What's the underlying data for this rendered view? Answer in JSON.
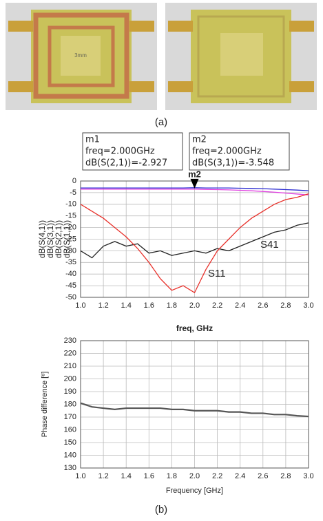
{
  "figure_labels": {
    "a": "(a)",
    "b": "(b)"
  },
  "chart_data": [
    {
      "type": "line",
      "xlabel": "freq, GHz",
      "x": [
        1.0,
        1.1,
        1.2,
        1.3,
        1.4,
        1.5,
        1.6,
        1.7,
        1.8,
        1.9,
        2.0,
        2.1,
        2.2,
        2.3,
        2.4,
        2.5,
        2.6,
        2.7,
        2.8,
        2.9,
        3.0
      ],
      "series": [
        {
          "name": "dB(S(4,1))",
          "color": "#222222",
          "values": [
            -30,
            -33,
            -28,
            -26,
            -28,
            -27,
            -31,
            -30,
            -32,
            -31,
            -30,
            -31,
            -29,
            -30,
            -28,
            -26,
            -24,
            -22,
            -21,
            -19,
            -18
          ]
        },
        {
          "name": "dB(S(3,1))",
          "color": "#e040e0",
          "values": [
            -3.5,
            -3.5,
            -3.5,
            -3.5,
            -3.5,
            -3.5,
            -3.5,
            -3.5,
            -3.5,
            -3.5,
            -3.5,
            -3.6,
            -3.7,
            -3.8,
            -4.0,
            -4.2,
            -4.5,
            -4.8,
            -5.2,
            -5.6,
            -6
          ]
        },
        {
          "name": "dB(S(2,1))",
          "color": "#2a2ad0",
          "values": [
            -3,
            -3,
            -3,
            -3,
            -3,
            -3,
            -3,
            -3,
            -3,
            -3,
            -2.9,
            -3,
            -3,
            -3,
            -3.1,
            -3.2,
            -3.3,
            -3.5,
            -3.7,
            -3.9,
            -4.2
          ]
        },
        {
          "name": "dB(S(1,1))",
          "color": "#e8302a",
          "values": [
            -10,
            -13,
            -16,
            -20,
            -24,
            -29,
            -35,
            -42,
            -47,
            -45,
            -48,
            -38,
            -30,
            -25,
            -20,
            -16,
            -13,
            -10,
            -8,
            -7,
            -5.5
          ]
        }
      ],
      "annotations": [
        "S41",
        "S11"
      ],
      "markers": [
        {
          "name": "m1",
          "freq": "freq=2.000GHz",
          "reading": "dB(S(2,1))=-2.927"
        },
        {
          "name": "m2",
          "freq": "freq=2.000GHz",
          "reading": "dB(S(3,1))=-3.548"
        }
      ],
      "xlim": [
        1.0,
        3.0
      ],
      "xticks": [
        {
          "value": 1.0,
          "label": "1.0"
        },
        {
          "value": 1.2,
          "label": "1.2"
        },
        {
          "value": 1.4,
          "label": "1.4"
        },
        {
          "value": 1.6,
          "label": "1.6"
        },
        {
          "value": 1.8,
          "label": "1.8"
        },
        {
          "value": 2.0,
          "label": "2.0"
        },
        {
          "value": 2.2,
          "label": "2.2"
        },
        {
          "value": 2.4,
          "label": "2.4"
        },
        {
          "value": 2.6,
          "label": "2.6"
        },
        {
          "value": 2.8,
          "label": "2.8"
        },
        {
          "value": 3.0,
          "label": "3.0"
        }
      ],
      "ylim": [
        -50,
        0
      ],
      "yticks": [
        0,
        -5,
        -10,
        -15,
        -20,
        -25,
        -30,
        -35,
        -40,
        -45,
        -50
      ],
      "grid": true
    },
    {
      "type": "line",
      "xlabel": "Frequency [GHz]",
      "ylabel": "Phase difference [º]",
      "x": [
        1.0,
        1.1,
        1.2,
        1.3,
        1.4,
        1.5,
        1.6,
        1.7,
        1.8,
        1.9,
        2.0,
        2.1,
        2.2,
        2.3,
        2.4,
        2.5,
        2.6,
        2.7,
        2.8,
        2.9,
        3.0
      ],
      "series": [
        {
          "color": "#555555",
          "values": [
            181,
            178,
            177,
            176,
            177,
            177,
            177,
            177,
            176,
            176,
            175,
            175,
            175,
            174,
            174,
            173,
            173,
            172,
            172,
            171,
            170.5
          ]
        }
      ],
      "xlim": [
        1.0,
        3.0
      ],
      "xticks": [
        {
          "value": 1.0,
          "label": "1.0"
        },
        {
          "value": 1.2,
          "label": "1.2"
        },
        {
          "value": 1.4,
          "label": "1.4"
        },
        {
          "value": 1.6,
          "label": "1.6"
        },
        {
          "value": 1.8,
          "label": "1.8"
        },
        {
          "value": 2.0,
          "label": "2.0"
        },
        {
          "value": 2.2,
          "label": "2.2"
        },
        {
          "value": 2.4,
          "label": "2.4"
        },
        {
          "value": 2.6,
          "label": "2.6"
        },
        {
          "value": 2.8,
          "label": "2.8"
        },
        {
          "value": 3.0,
          "label": "3.0"
        }
      ],
      "ylim": [
        130,
        230
      ],
      "yticks": [
        130,
        140,
        150,
        160,
        170,
        180,
        190,
        200,
        210,
        220,
        230
      ],
      "grid": true
    }
  ]
}
